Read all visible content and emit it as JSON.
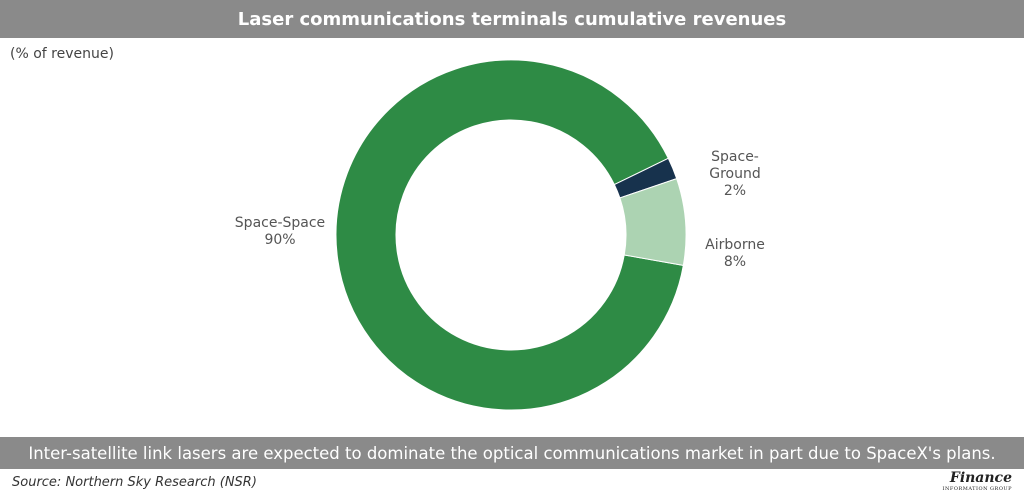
{
  "header": {
    "title": "Laser communications terminals cumulative revenues"
  },
  "chart_data": {
    "type": "pie",
    "ylabel": "(% of revenue)",
    "categories": [
      "Space-Space",
      "Space-Ground",
      "Airborne"
    ],
    "values": [
      90,
      2,
      8
    ],
    "value_labels": [
      "90%",
      "2%",
      "8%"
    ],
    "label_lines": [
      [
        "Space-",
        "Ground"
      ]
    ],
    "colors": [
      "#2e8b45",
      "#17324d",
      "#acd3b2"
    ]
  },
  "caption": "Inter-satellite link lasers are expected to dominate the optical communications market in part due to SpaceX's plans.",
  "source": "Source: Northern Sky Research (NSR)",
  "logo": {
    "word": "Finance",
    "sub": "INFORMATION GROUP"
  }
}
